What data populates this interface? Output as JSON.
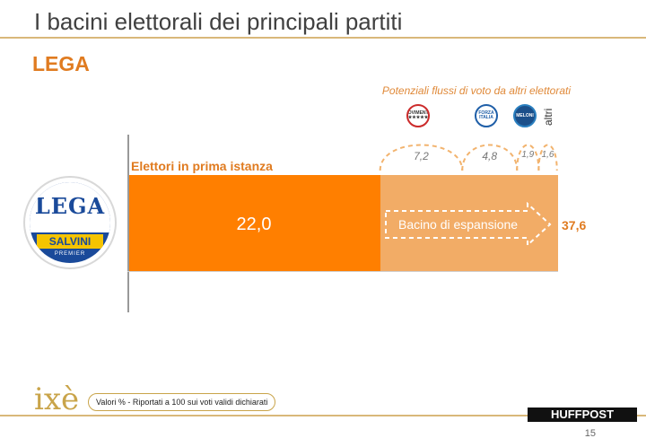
{
  "header": {
    "title": "I bacini elettorali dei principali partiti",
    "subtitle": "LEGA"
  },
  "logos": {
    "lega": {
      "top": "LEGA",
      "band": "SALVINI",
      "bottom": "PREMIER"
    },
    "m5s": "MOVIMENTO ★★★★★",
    "fi": "FORZA ITALIA",
    "fdi": "MELONI",
    "altri": "altri",
    "brand": "ixè",
    "publisher": "HUFFPOST"
  },
  "chart_data": {
    "type": "bar",
    "orientation": "horizontal-stacked",
    "base": {
      "label": "Elettori in prima istanza",
      "value": 22.0,
      "value_label": "22,0"
    },
    "expansion": {
      "label": "Bacino di espansione",
      "total": 37.6,
      "total_label": "37,6"
    },
    "flows_title": "Potenziali flussi di voto da altri elettorati",
    "flows": [
      {
        "source": "m5s",
        "value": 7.2,
        "label": "7,2"
      },
      {
        "source": "fi",
        "value": 4.8,
        "label": "4,8"
      },
      {
        "source": "fdi",
        "value": 1.9,
        "label": "1,9"
      },
      {
        "source": "altri",
        "value": 1.6,
        "label": "1,6"
      }
    ],
    "colors": {
      "base": "#ff7f00",
      "expansion": "#f2ac66",
      "accent": "#e07b20"
    }
  },
  "footer": {
    "note": "Valori % - Riportati a 100 sui voti validi dichiarati",
    "page": "15"
  }
}
